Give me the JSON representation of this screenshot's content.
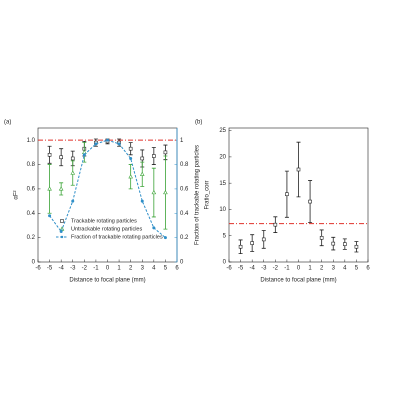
{
  "chart_data": [
    {
      "type": "scatter",
      "label": "(a)",
      "x_label": "Distance to focal plane (mm)",
      "y_label": "αF²",
      "y2_label": "Fraction of trackable rotating particles",
      "x": [
        -5,
        -4,
        -3,
        -2,
        -1,
        0,
        1,
        2,
        3,
        4,
        5
      ],
      "xlim": [
        -6,
        6
      ],
      "xticks": [
        -6,
        -5,
        -4,
        -3,
        -2,
        -1,
        0,
        1,
        2,
        3,
        4,
        5,
        6
      ],
      "ylim": [
        0,
        1.1
      ],
      "yticks": [
        0,
        0.2,
        0.4,
        0.6,
        0.8,
        {
          "value": 1.0,
          "label": "1.0"
        }
      ],
      "y2lim": [
        0,
        1.1
      ],
      "y2ticks": [
        0,
        0.2,
        0.4,
        0.6,
        0.8,
        1
      ],
      "y2color": "#2f8fc8",
      "reference_line": 1.0,
      "reference_color": "#e0302a",
      "series": [
        {
          "name": "Trackable rotating particles",
          "color": "#222222",
          "marker": "square",
          "values": [
            0.88,
            0.86,
            0.85,
            0.93,
            0.98,
            0.99,
            0.98,
            0.93,
            0.85,
            0.87,
            0.9
          ],
          "errors": [
            0.07,
            0.07,
            0.06,
            0.06,
            0.03,
            0.02,
            0.03,
            0.05,
            0.07,
            0.07,
            0.06
          ]
        },
        {
          "name": "Untrackable rotating particles",
          "color": "#3aa335",
          "marker": "triangle",
          "values": [
            0.6,
            0.6,
            0.73,
            0.9,
            null,
            null,
            null,
            0.7,
            0.72,
            0.57,
            0.57
          ],
          "errors": [
            0.2,
            0.05,
            0.1,
            0.08,
            null,
            null,
            null,
            0.1,
            0.1,
            0.2,
            0.3
          ]
        },
        {
          "name": "Fraction of trackable rotating particles",
          "color": "#2f8fc8",
          "marker": "circle",
          "line": "dashed",
          "axis": "y2",
          "values": [
            0.38,
            0.25,
            0.5,
            0.88,
            0.97,
            1.0,
            0.97,
            0.85,
            0.5,
            0.28,
            0.2
          ]
        }
      ]
    },
    {
      "type": "scatter",
      "label": "(b)",
      "x_label": "Distance to focal plane (mm)",
      "y_label": "Fratio_corr",
      "x": [
        -5,
        -4,
        -3,
        -2,
        -1,
        0,
        1,
        2,
        3,
        4,
        5
      ],
      "xlim": [
        -6,
        6
      ],
      "xticks": [
        -6,
        -5,
        -4,
        -3,
        -2,
        -1,
        0,
        1,
        2,
        3,
        4,
        5,
        6
      ],
      "ylim": [
        0,
        25.5
      ],
      "yticks": [
        0,
        5,
        10,
        15,
        20,
        25
      ],
      "reference_line": 7.3,
      "reference_color": "#e0302a",
      "series": [
        {
          "color": "#222222",
          "marker": "square",
          "values": [
            2.9,
            3.6,
            4.3,
            7.1,
            12.9,
            17.6,
            11.5,
            4.6,
            3.5,
            3.4,
            2.9
          ],
          "errors": [
            1.3,
            1.6,
            1.7,
            1.5,
            4.4,
            5.2,
            4.0,
            1.5,
            1.2,
            1.0,
            1.0
          ]
        }
      ]
    }
  ]
}
